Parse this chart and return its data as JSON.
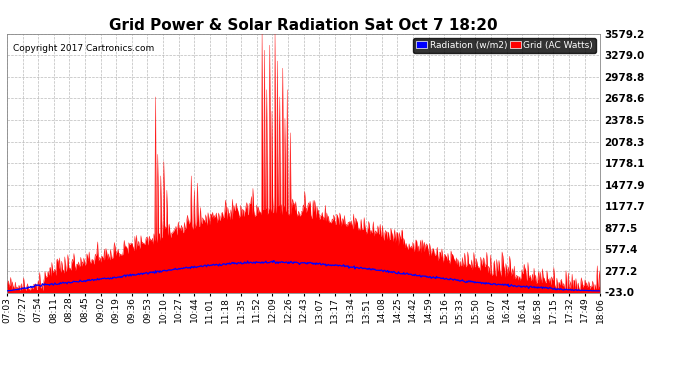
{
  "title": "Grid Power & Solar Radiation Sat Oct 7 18:20",
  "copyright": "Copyright 2017 Cartronics.com",
  "legend_radiation": "Radiation (w/m2)",
  "legend_grid": "Grid (AC Watts)",
  "ymin": -23.0,
  "ymax": 3579.2,
  "yticks": [
    -23.0,
    277.2,
    577.4,
    877.5,
    1177.7,
    1477.9,
    1778.1,
    2078.3,
    2378.5,
    2678.6,
    2978.8,
    3279.0,
    3579.2
  ],
  "background_color": "#ffffff",
  "plot_bg_color": "#ffffff",
  "grid_color": "#aaaaaa",
  "radiation_color": "#0000ff",
  "grid_power_color": "#ff0000",
  "title_fontsize": 11,
  "tick_fontsize": 7.5,
  "xlabel_fontsize": 6.5,
  "xtick_labels": [
    "07:03",
    "07:27",
    "07:54",
    "08:11",
    "08:28",
    "08:45",
    "09:02",
    "09:19",
    "09:36",
    "09:53",
    "10:10",
    "10:27",
    "10:44",
    "11:01",
    "11:18",
    "11:35",
    "11:52",
    "12:09",
    "12:26",
    "12:43",
    "13:07",
    "13:17",
    "13:34",
    "13:51",
    "14:08",
    "14:25",
    "14:42",
    "14:59",
    "15:16",
    "15:33",
    "15:50",
    "16:07",
    "16:24",
    "16:41",
    "16:58",
    "17:15",
    "17:32",
    "17:49",
    "18:06"
  ],
  "n_points": 780,
  "radiation_peak": 400,
  "radiation_sigma": 170,
  "radiation_peak_idx": 350,
  "grid_peak_idx": 350,
  "grid_sigma": 160,
  "grid_base_max": 1050
}
